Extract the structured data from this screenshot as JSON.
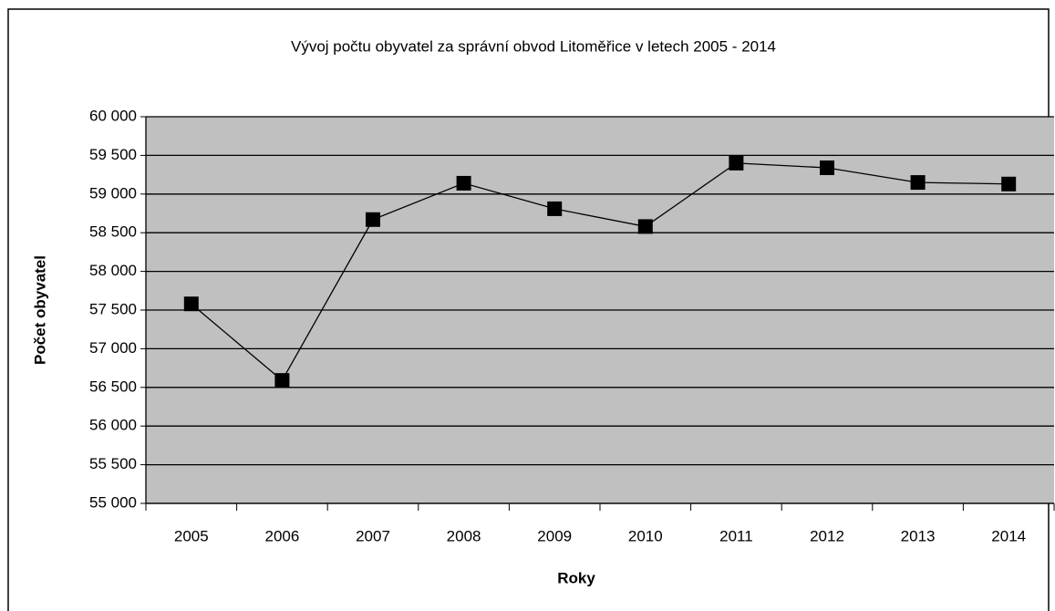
{
  "chart_data": {
    "type": "line",
    "title": "Vývoj počtu obyvatel za správní obvod Litoměřice v letech 2005 - 2014",
    "x_label": "Roky",
    "y_label": "Počet obyvatel",
    "categories": [
      "2005",
      "2006",
      "2007",
      "2008",
      "2009",
      "2010",
      "2011",
      "2012",
      "2013",
      "2014"
    ],
    "series": [
      {
        "name": "Počet obyvatel",
        "color": "#000000",
        "values": [
          57580,
          56590,
          58670,
          59140,
          58810,
          58580,
          59400,
          59340,
          59150,
          59130
        ]
      }
    ],
    "ylim": [
      55000,
      60000
    ],
    "yticks": [
      {
        "value": 55000,
        "label": "55 000"
      },
      {
        "value": 55500,
        "label": "55 500"
      },
      {
        "value": 56000,
        "label": "56 000"
      },
      {
        "value": 56500,
        "label": "56 500"
      },
      {
        "value": 57000,
        "label": "57 000"
      },
      {
        "value": 57500,
        "label": "57 500"
      },
      {
        "value": 58000,
        "label": "58 000"
      },
      {
        "value": 58500,
        "label": "58 500"
      },
      {
        "value": 59000,
        "label": "59 000"
      },
      {
        "value": 59500,
        "label": "59 500"
      },
      {
        "value": 60000,
        "label": "60 000"
      }
    ],
    "grid": true,
    "plot_background": "#c0c0c0"
  }
}
